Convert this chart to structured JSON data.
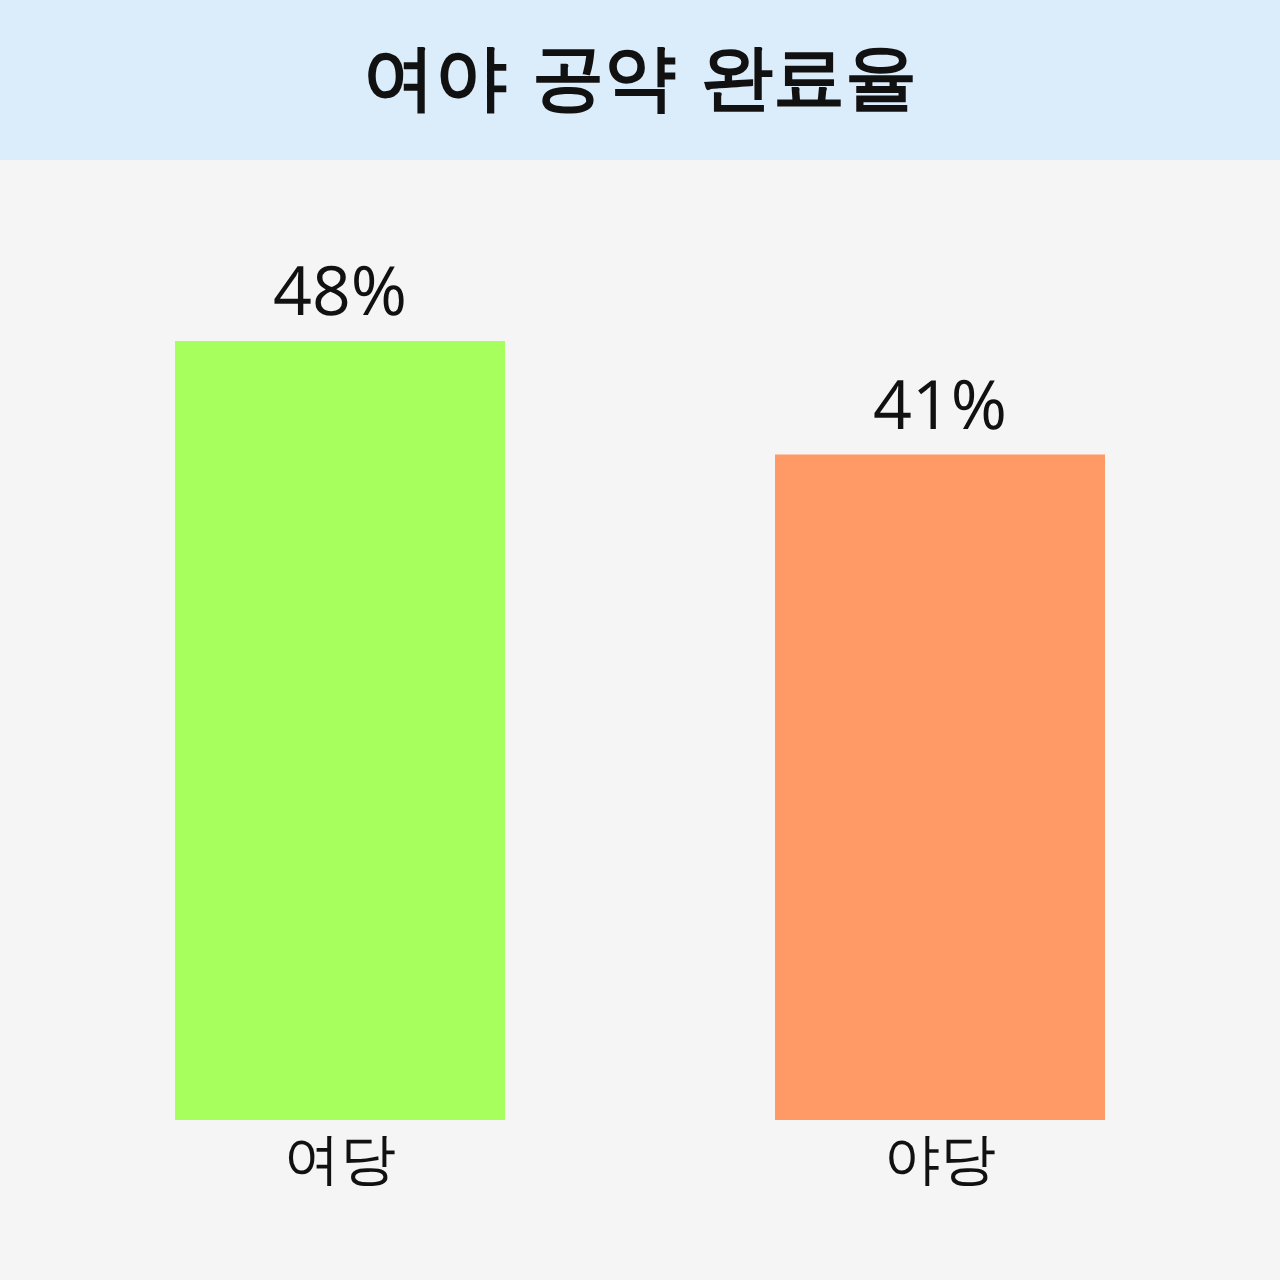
{
  "chart_data": {
    "type": "bar",
    "title": "여야 공약 완료율",
    "categories": [
      "여당",
      "야당"
    ],
    "values": [
      48,
      41
    ],
    "colors": [
      "#a6ff5c",
      "#ff9966"
    ],
    "value_labels": [
      "48%",
      "41%"
    ]
  }
}
